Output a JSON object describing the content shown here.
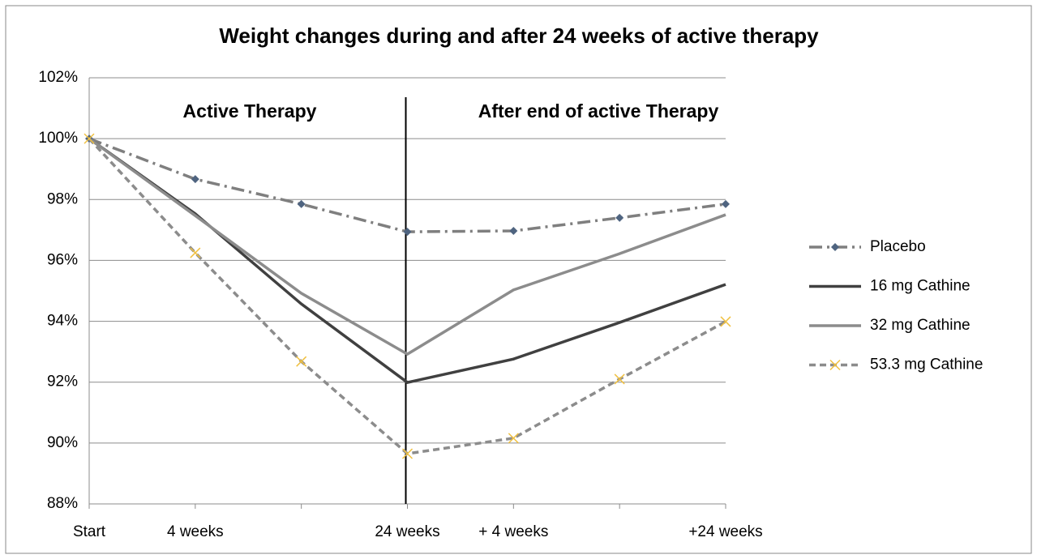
{
  "chart_data": {
    "type": "line",
    "title": "Weight changes during and after 24 weeks of active therapy",
    "annotations": [
      "Active Therapy",
      "After end of active Therapy"
    ],
    "categories": [
      "Start",
      "4 weeks",
      null,
      "24 weeks",
      "+ 4 weeks",
      null,
      "+24 weeks"
    ],
    "series": [
      {
        "name": "Placebo",
        "color": "#7f7f7f",
        "marker_color": "#4f6480",
        "dash": "dash-dot",
        "marker": "diamond",
        "values": [
          100,
          98.67,
          97.85,
          96.94,
          96.97,
          97.4,
          97.85
        ]
      },
      {
        "name": "16 mg Cathine",
        "color": "#404040",
        "dash": null,
        "marker": null,
        "values": [
          100,
          97.53,
          94.57,
          91.99,
          92.76,
          93.96,
          95.21
        ]
      },
      {
        "name": "32 mg Cathine",
        "color": "#8c8c8c",
        "dash": null,
        "marker": null,
        "values": [
          100,
          97.47,
          94.92,
          92.92,
          95.03,
          96.22,
          97.5
        ]
      },
      {
        "name": "53.3 mg Cathine",
        "color": "#8c8c8c",
        "marker_color": "#f0c040",
        "dash": "dash",
        "marker": "x",
        "values": [
          100,
          96.25,
          92.68,
          89.65,
          90.16,
          92.1,
          93.99
        ]
      }
    ],
    "ylim": [
      88,
      102
    ],
    "yticks": [
      {
        "value": 88,
        "label": "88%"
      },
      {
        "value": 90,
        "label": "90%"
      },
      {
        "value": 92,
        "label": "92%"
      },
      {
        "value": 94,
        "label": "94%"
      },
      {
        "value": 96,
        "label": "96%"
      },
      {
        "value": 98,
        "label": "98%"
      },
      {
        "value": 100,
        "label": "100%"
      },
      {
        "value": 102,
        "label": "102%"
      }
    ],
    "grid": true,
    "legend": "right"
  }
}
